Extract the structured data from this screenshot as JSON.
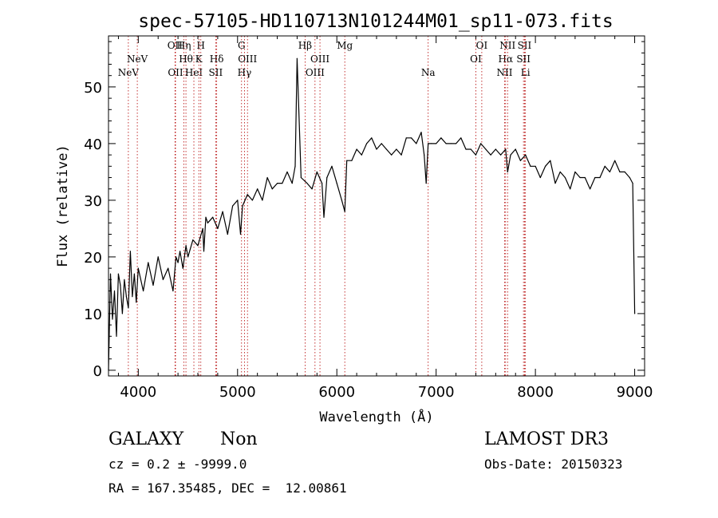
{
  "chart_data": {
    "type": "line",
    "title": "spec-57105-HD110713N101244M01_sp11-073.fits",
    "xlabel": "Wavelength (Å)",
    "ylabel": "Flux (relative)",
    "xlim": [
      3700,
      9100
    ],
    "ylim": [
      -1,
      59
    ],
    "xticks": [
      4000,
      5000,
      6000,
      7000,
      8000,
      9000
    ],
    "yticks": [
      0,
      10,
      20,
      30,
      40,
      50
    ],
    "series": [
      {
        "name": "flux",
        "x": [
          3700,
          3720,
          3740,
          3760,
          3780,
          3800,
          3820,
          3840,
          3860,
          3880,
          3900,
          3920,
          3940,
          3960,
          3980,
          4000,
          4050,
          4100,
          4150,
          4200,
          4250,
          4300,
          4350,
          4380,
          4400,
          4420,
          4450,
          4480,
          4500,
          4550,
          4600,
          4650,
          4660,
          4680,
          4700,
          4750,
          4800,
          4850,
          4900,
          4950,
          5000,
          5030,
          5050,
          5100,
          5150,
          5200,
          5250,
          5300,
          5350,
          5400,
          5450,
          5500,
          5550,
          5580,
          5600,
          5640,
          5700,
          5750,
          5800,
          5850,
          5870,
          5900,
          5950,
          6000,
          6050,
          6080,
          6100,
          6150,
          6200,
          6250,
          6300,
          6350,
          6400,
          6450,
          6500,
          6550,
          6600,
          6650,
          6700,
          6750,
          6800,
          6850,
          6880,
          6900,
          6920,
          6950,
          7000,
          7050,
          7100,
          7150,
          7200,
          7250,
          7300,
          7350,
          7400,
          7450,
          7500,
          7550,
          7600,
          7650,
          7700,
          7720,
          7750,
          7800,
          7850,
          7900,
          7950,
          8000,
          8050,
          8100,
          8150,
          8200,
          8250,
          8300,
          8350,
          8400,
          8450,
          8500,
          8550,
          8600,
          8650,
          8700,
          8750,
          8800,
          8850,
          8900,
          8950,
          8980,
          9000
        ],
        "values": [
          0,
          17,
          9,
          14,
          6,
          17,
          15,
          10,
          16,
          13,
          11,
          21,
          13,
          17,
          12,
          18,
          14,
          19,
          15,
          20,
          16,
          18,
          14,
          20,
          19,
          21,
          18,
          22,
          20,
          23,
          22,
          25,
          21,
          27,
          26,
          27,
          25,
          28,
          24,
          29,
          30,
          24,
          29,
          31,
          30,
          32,
          30,
          34,
          32,
          33,
          33,
          35,
          33,
          36,
          55,
          34,
          33,
          32,
          35,
          33,
          27,
          34,
          36,
          33,
          30,
          28,
          37,
          37,
          39,
          38,
          40,
          41,
          39,
          40,
          39,
          38,
          39,
          38,
          41,
          41,
          40,
          42,
          38,
          33,
          40,
          40,
          40,
          41,
          40,
          40,
          40,
          41,
          39,
          39,
          38,
          40,
          39,
          38,
          39,
          38,
          39,
          35,
          38,
          39,
          37,
          38,
          36,
          36,
          34,
          36,
          37,
          33,
          35,
          34,
          32,
          35,
          34,
          34,
          32,
          34,
          34,
          36,
          35,
          37,
          35,
          35,
          34,
          33,
          10
        ]
      }
    ],
    "lines": [
      {
        "label": "NeV",
        "wavelength": 3900,
        "row": 3
      },
      {
        "label": "NeV",
        "wavelength": 3990,
        "row": 2
      },
      {
        "label": "OII",
        "wavelength": 4370,
        "row": 1
      },
      {
        "label": "OII",
        "wavelength": 4375,
        "row": 3
      },
      {
        "label": "Hη",
        "wavelength": 4460,
        "row": 1
      },
      {
        "label": "Hθ",
        "wavelength": 4480,
        "row": 2
      },
      {
        "label": "HeI",
        "wavelength": 4560,
        "row": 3
      },
      {
        "label": "H",
        "wavelength": 4630,
        "row": 1
      },
      {
        "label": "K",
        "wavelength": 4610,
        "row": 2
      },
      {
        "label": "Hδ",
        "wavelength": 4790,
        "row": 2
      },
      {
        "label": "SII",
        "wavelength": 4780,
        "row": 3
      },
      {
        "label": "G",
        "wavelength": 5040,
        "row": 1
      },
      {
        "label": "OIII",
        "wavelength": 5100,
        "row": 2
      },
      {
        "label": "Hγ",
        "wavelength": 5070,
        "row": 3
      },
      {
        "label": "Hβ",
        "wavelength": 5680,
        "row": 1
      },
      {
        "label": "OIII",
        "wavelength": 5830,
        "row": 2
      },
      {
        "label": "OIII",
        "wavelength": 5780,
        "row": 3
      },
      {
        "label": "Mg",
        "wavelength": 6080,
        "row": 1
      },
      {
        "label": "Na",
        "wavelength": 6920,
        "row": 3
      },
      {
        "label": "OI",
        "wavelength": 7460,
        "row": 1
      },
      {
        "label": "OI",
        "wavelength": 7400,
        "row": 2
      },
      {
        "label": "NII",
        "wavelength": 7720,
        "row": 1
      },
      {
        "label": "Hα",
        "wavelength": 7700,
        "row": 2
      },
      {
        "label": "NII",
        "wavelength": 7690,
        "row": 3
      },
      {
        "label": "SII",
        "wavelength": 7890,
        "row": 1
      },
      {
        "label": "SII",
        "wavelength": 7880,
        "row": 2
      },
      {
        "label": "Li",
        "wavelength": 7900,
        "row": 3
      }
    ]
  },
  "info": {
    "class": "GALAXY",
    "subclass": "Non",
    "survey": "LAMOST DR3",
    "cz": "cz = 0.2 ± -9999.0",
    "obs_date": "Obs-Date: 20150323",
    "radec": "RA = 167.35485, DEC =  12.00861"
  }
}
